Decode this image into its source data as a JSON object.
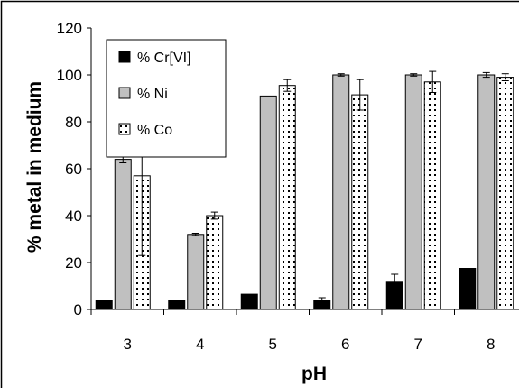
{
  "chart_data": {
    "type": "bar",
    "title": "",
    "xlabel": "pH",
    "ylabel": "% metal in medium",
    "categories": [
      "3",
      "4",
      "5",
      "6",
      "7",
      "8"
    ],
    "ylim": [
      0,
      120
    ],
    "yticks": [
      0,
      20,
      40,
      60,
      80,
      100,
      120
    ],
    "grid": false,
    "legend_position": "top-left",
    "series": [
      {
        "name": "% Cr[VI]",
        "fill": "#000000",
        "pattern": "solid",
        "values": [
          4,
          4,
          6.5,
          4,
          12,
          17.5
        ],
        "errors": [
          0,
          0,
          0,
          1,
          3,
          0
        ]
      },
      {
        "name": "% Ni",
        "fill": "#c0c0c0",
        "pattern": "solid",
        "values": [
          64,
          32,
          91,
          100,
          100,
          100
        ],
        "errors": [
          1.5,
          0.5,
          0,
          0.5,
          0.5,
          1
        ]
      },
      {
        "name": "% Co",
        "fill": "#ffffff",
        "pattern": "dots",
        "values": [
          57,
          40,
          95.5,
          91.5,
          97,
          99
        ],
        "errors": [
          34,
          1.5,
          2.5,
          6.5,
          4.5,
          1.5
        ]
      }
    ]
  }
}
